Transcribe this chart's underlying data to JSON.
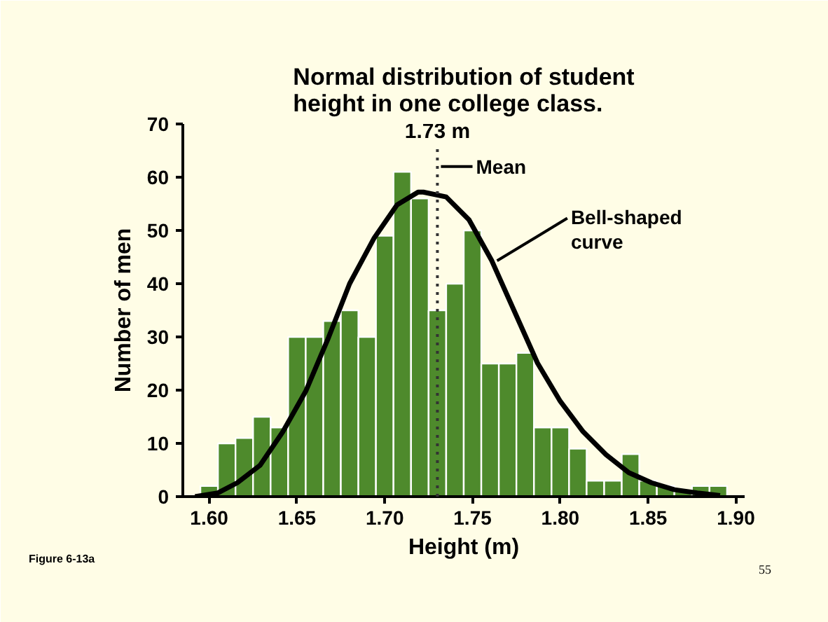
{
  "chart_data": {
    "type": "histogram",
    "title": "Normal distribution of student\nheight in one college class.",
    "xlabel": "Height (m)",
    "ylabel": "Number of men",
    "bins": [
      1.595,
      1.605,
      1.615,
      1.625,
      1.635,
      1.645,
      1.655,
      1.665,
      1.675,
      1.685,
      1.695,
      1.705,
      1.715,
      1.725,
      1.735,
      1.745,
      1.755,
      1.765,
      1.775,
      1.785,
      1.795,
      1.805,
      1.815,
      1.825,
      1.835,
      1.845,
      1.855,
      1.865,
      1.875,
      1.885,
      1.895
    ],
    "values": [
      2,
      10,
      11,
      15,
      13,
      30,
      30,
      33,
      35,
      30,
      49,
      61,
      56,
      35,
      40,
      50,
      25,
      25,
      27,
      13,
      13,
      9,
      3,
      3,
      8,
      3,
      2,
      1,
      2,
      2
    ],
    "color": "#4e8a2c",
    "series": [
      {
        "type": "line",
        "name": "Bell-shaped curve",
        "color": "#000000",
        "x": [
          1.592,
          1.605,
          1.616,
          1.629,
          1.642,
          1.655,
          1.668,
          1.68,
          1.694,
          1.707,
          1.719,
          1.722,
          1.735,
          1.748,
          1.761,
          1.774,
          1.787,
          1.8,
          1.813,
          1.826,
          1.839,
          1.852,
          1.865,
          1.878,
          1.891
        ],
        "values": [
          0,
          0.7,
          2.6,
          5.9,
          12.2,
          19.8,
          29.9,
          40,
          48.6,
          54.8,
          57.2,
          57.2,
          56.3,
          52,
          44.3,
          34.7,
          25.1,
          17.9,
          12.2,
          7.9,
          4.5,
          2.6,
          1.3,
          0.7,
          0.2
        ]
      }
    ],
    "xlim": [
      1.585,
      1.905
    ],
    "ylim": [
      0,
      70
    ],
    "xticks": [
      {
        "value": 1.6,
        "label": "1.60"
      },
      {
        "value": 1.65,
        "label": "1.65"
      },
      {
        "value": 1.7,
        "label": "1.70"
      },
      {
        "value": 1.75,
        "label": "1.75"
      },
      {
        "value": 1.8,
        "label": "1.80"
      },
      {
        "value": 1.85,
        "label": "1.85"
      },
      {
        "value": 1.9,
        "label": "1.90"
      }
    ],
    "yticks": [
      0,
      10,
      20,
      30,
      40,
      50,
      60,
      70
    ],
    "ref_lines": [
      {
        "axis": "x",
        "value": 1.73,
        "label": "1.73 m",
        "line_style": "dotted",
        "color": "#333333"
      }
    ],
    "annotations": [
      {
        "text": "Mean",
        "x": 1.73,
        "y": 62
      },
      "Figure 6-13a",
      "55"
    ],
    "grid": false,
    "legend": "right"
  }
}
